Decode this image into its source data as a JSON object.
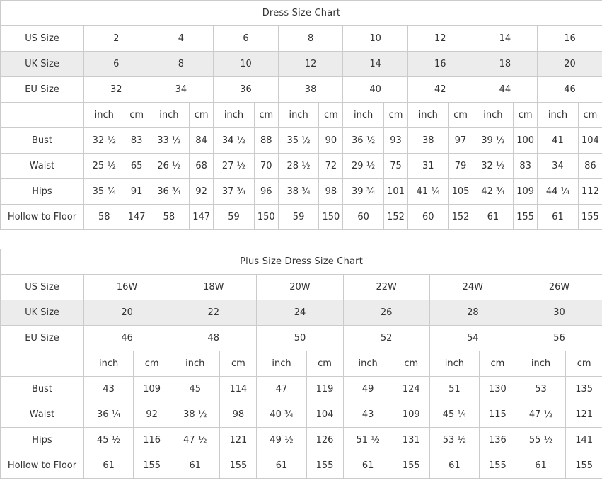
{
  "colors": {
    "page_bg": "#ffffff",
    "header_bg": "#ececec",
    "shaded_cell_bg": "#ececec",
    "cell_bg": "#ffffff",
    "border": "#cbcbcb",
    "text": "#333333",
    "title_text": "#000000"
  },
  "chart_data": [
    {
      "type": "table",
      "title": "Dress Size Chart",
      "unit_labels": [
        "inch",
        "cm"
      ],
      "size_rows": [
        {
          "label": "US Size",
          "values": [
            "2",
            "4",
            "6",
            "8",
            "10",
            "12",
            "14",
            "16"
          ]
        },
        {
          "label": "UK Size",
          "values": [
            "6",
            "8",
            "10",
            "12",
            "14",
            "16",
            "18",
            "20"
          ]
        },
        {
          "label": "EU Size",
          "values": [
            "32",
            "34",
            "36",
            "38",
            "40",
            "42",
            "44",
            "46"
          ]
        }
      ],
      "measurement_rows": [
        {
          "label": "Bust",
          "values": [
            [
              "32 ½",
              "83"
            ],
            [
              "33 ½",
              "84"
            ],
            [
              "34 ½",
              "88"
            ],
            [
              "35 ½",
              "90"
            ],
            [
              "36 ½",
              "93"
            ],
            [
              "38",
              "97"
            ],
            [
              "39 ½",
              "100"
            ],
            [
              "41",
              "104"
            ]
          ]
        },
        {
          "label": "Waist",
          "values": [
            [
              "25 ½",
              "65"
            ],
            [
              "26 ½",
              "68"
            ],
            [
              "27 ½",
              "70"
            ],
            [
              "28 ½",
              "72"
            ],
            [
              "29 ½",
              "75"
            ],
            [
              "31",
              "79"
            ],
            [
              "32 ½",
              "83"
            ],
            [
              "34",
              "86"
            ]
          ]
        },
        {
          "label": "Hips",
          "values": [
            [
              "35 ¾",
              "91"
            ],
            [
              "36 ¾",
              "92"
            ],
            [
              "37 ¾",
              "96"
            ],
            [
              "38 ¾",
              "98"
            ],
            [
              "39 ¾",
              "101"
            ],
            [
              "41 ¼",
              "105"
            ],
            [
              "42 ¾",
              "109"
            ],
            [
              "44 ¼",
              "112"
            ]
          ]
        },
        {
          "label": "Hollow to Floor",
          "values": [
            [
              "58",
              "147"
            ],
            [
              "58",
              "147"
            ],
            [
              "59",
              "150"
            ],
            [
              "59",
              "150"
            ],
            [
              "60",
              "152"
            ],
            [
              "60",
              "152"
            ],
            [
              "61",
              "155"
            ],
            [
              "61",
              "155"
            ]
          ]
        }
      ]
    },
    {
      "type": "table",
      "title": "Plus Size Dress Size Chart",
      "unit_labels": [
        "inch",
        "cm"
      ],
      "size_rows": [
        {
          "label": "US Size",
          "values": [
            "16W",
            "18W",
            "20W",
            "22W",
            "24W",
            "26W"
          ]
        },
        {
          "label": "UK Size",
          "values": [
            "20",
            "22",
            "24",
            "26",
            "28",
            "30"
          ]
        },
        {
          "label": "EU Size",
          "values": [
            "46",
            "48",
            "50",
            "52",
            "54",
            "56"
          ]
        }
      ],
      "measurement_rows": [
        {
          "label": "Bust",
          "values": [
            [
              "43",
              "109"
            ],
            [
              "45",
              "114"
            ],
            [
              "47",
              "119"
            ],
            [
              "49",
              "124"
            ],
            [
              "51",
              "130"
            ],
            [
              "53",
              "135"
            ]
          ]
        },
        {
          "label": "Waist",
          "values": [
            [
              "36 ¼",
              "92"
            ],
            [
              "38 ½",
              "98"
            ],
            [
              "40 ¾",
              "104"
            ],
            [
              "43",
              "109"
            ],
            [
              "45 ¼",
              "115"
            ],
            [
              "47 ½",
              "121"
            ]
          ]
        },
        {
          "label": "Hips",
          "values": [
            [
              "45 ½",
              "116"
            ],
            [
              "47 ½",
              "121"
            ],
            [
              "49 ½",
              "126"
            ],
            [
              "51 ½",
              "131"
            ],
            [
              "53 ½",
              "136"
            ],
            [
              "55 ½",
              "141"
            ]
          ]
        },
        {
          "label": "Hollow to Floor",
          "values": [
            [
              "61",
              "155"
            ],
            [
              "61",
              "155"
            ],
            [
              "61",
              "155"
            ],
            [
              "61",
              "155"
            ],
            [
              "61",
              "155"
            ],
            [
              "61",
              "155"
            ]
          ]
        }
      ]
    }
  ]
}
